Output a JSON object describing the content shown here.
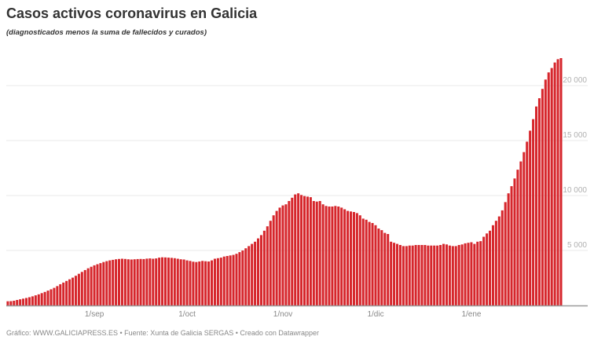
{
  "chart_data": {
    "type": "bar",
    "title": "Casos activos coronavirus en Galicia",
    "subtitle": "(diagnosticados menos la suma de fallecidos y curados)",
    "bar_color": "#d6262c",
    "grid": true,
    "ylim": [
      0,
      23000
    ],
    "y_ticks": [
      {
        "value": 5000,
        "label": "5 000"
      },
      {
        "value": 10000,
        "label": "10 000"
      },
      {
        "value": 15000,
        "label": "15 000"
      },
      {
        "value": 20000,
        "label": "20 000"
      }
    ],
    "x_ticks": [
      {
        "date": "2020-09-01",
        "label": "1/sep"
      },
      {
        "date": "2020-10-01",
        "label": "1/oct"
      },
      {
        "date": "2020-11-01",
        "label": "1/nov"
      },
      {
        "date": "2020-12-01",
        "label": "1/dic"
      },
      {
        "date": "2021-01-01",
        "label": "1/ene"
      }
    ],
    "months": [
      {
        "month": "2020-08",
        "first_day": 4,
        "values": [
          380,
          390,
          430,
          500,
          560,
          620,
          680,
          750,
          830,
          920,
          1010,
          1120,
          1230,
          1350,
          1470,
          1600,
          1760,
          1930,
          2080,
          2230,
          2380,
          2530,
          2700,
          2880,
          3050,
          3220,
          3380,
          3520
        ]
      },
      {
        "month": "2020-09",
        "first_day": 1,
        "values": [
          3650,
          3750,
          3850,
          3950,
          4030,
          4100,
          4150,
          4200,
          4230,
          4250,
          4230,
          4200,
          4180,
          4200,
          4220,
          4230,
          4220,
          4260,
          4280,
          4250,
          4280,
          4350,
          4380,
          4370,
          4350,
          4330,
          4300,
          4250,
          4200,
          4180
        ]
      },
      {
        "month": "2020-10",
        "first_day": 1,
        "values": [
          4100,
          4050,
          3980,
          3950,
          4000,
          4050,
          4020,
          4000,
          4100,
          4250,
          4300,
          4350,
          4450,
          4500,
          4550,
          4600,
          4700,
          4850,
          5000,
          5200,
          5400,
          5600,
          5800,
          6100,
          6400,
          6800,
          7200,
          7700,
          8200,
          8600,
          8900
        ]
      },
      {
        "month": "2020-11",
        "first_day": 1,
        "values": [
          9100,
          9200,
          9500,
          9800,
          10100,
          10200,
          10050,
          9950,
          9900,
          9850,
          9500,
          9450,
          9500,
          9200,
          9050,
          9000,
          9000,
          9050,
          9000,
          8900,
          8750,
          8600,
          8550,
          8500,
          8400,
          8200,
          7900,
          7800,
          7600,
          7500
        ]
      },
      {
        "month": "2020-12",
        "first_day": 1,
        "values": [
          7300,
          7000,
          6850,
          6600,
          6500,
          5800,
          5700,
          5600,
          5500,
          5400,
          5400,
          5450,
          5450,
          5500,
          5500,
          5500,
          5500,
          5450,
          5450,
          5450,
          5450,
          5500,
          5600,
          5550,
          5450,
          5400,
          5400,
          5500,
          5550,
          5650,
          5700
        ]
      },
      {
        "month": "2021-01",
        "first_day": 1,
        "values": [
          5750,
          5600,
          5800,
          5850,
          6250,
          6550,
          6800,
          7300,
          7700,
          8100,
          8650,
          9400,
          10200,
          10850,
          11550,
          12350,
          13100,
          13950,
          14900,
          15900,
          16950,
          18100,
          18850,
          19700,
          20550,
          21200,
          21600,
          22100,
          22400,
          22500
        ]
      }
    ]
  },
  "footer": "Gráfico: WWW.GALICIAPRESS.ES • Fuente: Xunta de Galicia SERGAS • Creado con Datawrapper"
}
